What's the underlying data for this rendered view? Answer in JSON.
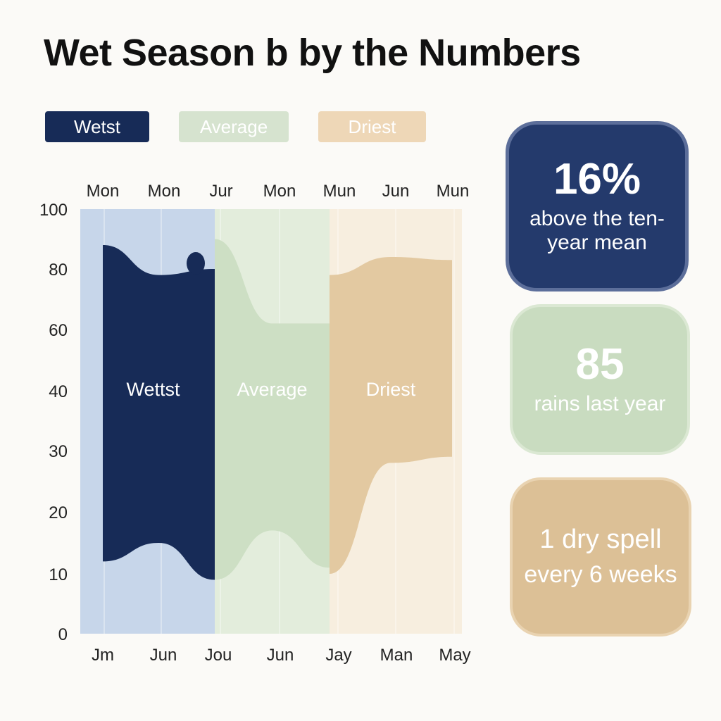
{
  "title": "Wet Season b by the Numbers",
  "legend": [
    {
      "label": "Wetst",
      "color": "#172b57"
    },
    {
      "label": "Average",
      "color": "#d6e3cf"
    },
    {
      "label": "Driest",
      "color": "#eed7b7"
    }
  ],
  "chart_data": {
    "type": "area",
    "title": "Wet Season b by the Numbers",
    "y_ticks": [
      "0",
      "10",
      "20",
      "30",
      "40",
      "60",
      "80",
      "100"
    ],
    "top_x_ticks": [
      "Mon",
      "Mon",
      "Jur",
      "Mon",
      "Mun",
      "Jun",
      "Mun"
    ],
    "bottom_x_ticks": [
      "Jm",
      "Jun",
      "Jou",
      "Jun",
      "Jay",
      "Man",
      "May"
    ],
    "grid": true,
    "bands": [
      {
        "label": "Wettst",
        "color": "#172b57",
        "background": "#c7d6ea",
        "top": [
          88,
          78,
          80
        ],
        "bottom": [
          12,
          15,
          9
        ]
      },
      {
        "label": "Average",
        "color": "#cddfc4",
        "background": "#e3eddc",
        "top": [
          90,
          62,
          62
        ],
        "bottom": [
          9,
          17,
          11
        ]
      },
      {
        "label": "Driest",
        "color": "#e3c9a1",
        "background": "#f7eedf",
        "top": [
          78,
          84,
          83
        ],
        "bottom": [
          10,
          28,
          29
        ]
      }
    ]
  },
  "cards": [
    {
      "value": "16%",
      "caption": "above the ten-year mean",
      "color": "#243a6c"
    },
    {
      "value": "85",
      "caption": "rains last year",
      "color": "#c9dcc0"
    },
    {
      "value": "1 dry spell",
      "caption": "every 6 weeks",
      "color": "#dcc096"
    }
  ]
}
